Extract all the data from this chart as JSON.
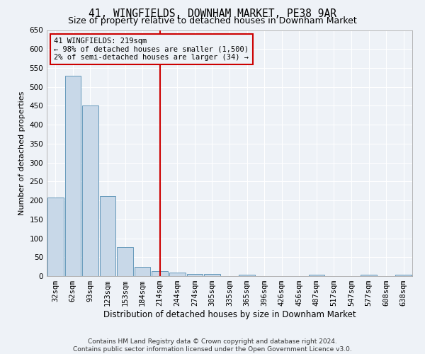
{
  "title": "41, WINGFIELDS, DOWNHAM MARKET, PE38 9AR",
  "subtitle": "Size of property relative to detached houses in Downham Market",
  "xlabel": "Distribution of detached houses by size in Downham Market",
  "ylabel": "Number of detached properties",
  "footer_line1": "Contains HM Land Registry data © Crown copyright and database right 2024.",
  "footer_line2": "Contains public sector information licensed under the Open Government Licence v3.0.",
  "categories": [
    "32sqm",
    "62sqm",
    "93sqm",
    "123sqm",
    "153sqm",
    "184sqm",
    "214sqm",
    "244sqm",
    "274sqm",
    "305sqm",
    "335sqm",
    "365sqm",
    "396sqm",
    "426sqm",
    "456sqm",
    "487sqm",
    "517sqm",
    "547sqm",
    "577sqm",
    "608sqm",
    "638sqm"
  ],
  "values": [
    207,
    530,
    450,
    212,
    76,
    25,
    13,
    10,
    5,
    5,
    0,
    3,
    0,
    0,
    0,
    3,
    0,
    0,
    3,
    0,
    3
  ],
  "bar_color": "#c8d8e8",
  "bar_edge_color": "#6699bb",
  "highlight_line_color": "#cc0000",
  "annotation_line1": "41 WINGFIELDS: 219sqm",
  "annotation_line2": "← 98% of detached houses are smaller (1,500)",
  "annotation_line3": "2% of semi-detached houses are larger (34) →",
  "annotation_box_color": "#cc0000",
  "ylim": [
    0,
    650
  ],
  "yticks": [
    0,
    50,
    100,
    150,
    200,
    250,
    300,
    350,
    400,
    450,
    500,
    550,
    600,
    650
  ],
  "background_color": "#eef2f7",
  "grid_color": "#ffffff",
  "title_fontsize": 10.5,
  "subtitle_fontsize": 9,
  "xlabel_fontsize": 8.5,
  "ylabel_fontsize": 8,
  "tick_fontsize": 7.5,
  "footer_fontsize": 6.5
}
